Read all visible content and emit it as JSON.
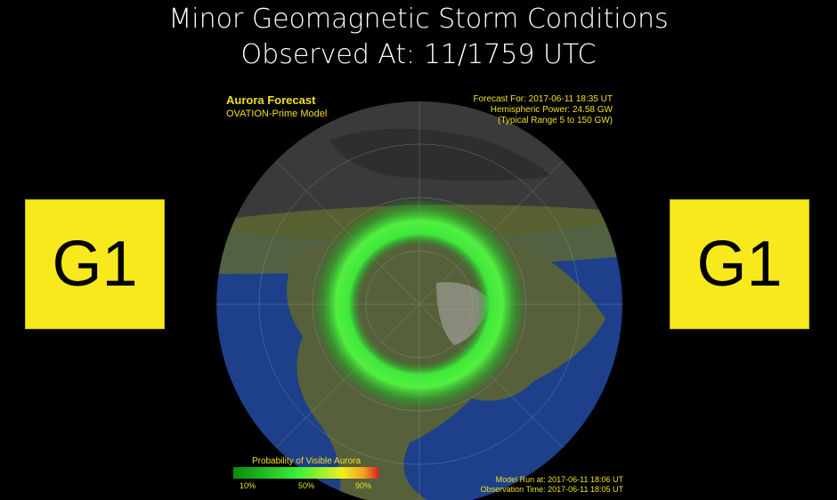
{
  "header": {
    "title_line1": "Minor Geomagnetic Storm Conditions",
    "title_line2": "Observed At: 11/1759 UTC"
  },
  "badges": {
    "left": "G1",
    "right": "G1"
  },
  "map": {
    "title": "Aurora Forecast",
    "model": "OVATION-Prime Model",
    "forecast_for": "Forecast For: 2017-06-11 18:35 UT",
    "hemispheric_power": "Hemispheric Power: 24.58 GW",
    "typical_range": "(Typical Range 5 to 150 GW)",
    "legend_title": "Probability of Visible Aurora",
    "legend_ticks": [
      "10%",
      "50%",
      "90%"
    ],
    "model_run": "Model Run at: 2017-06-11 18:06 UT",
    "observation_time": "Observation Time: 2017-06-11 18:05 UT"
  }
}
